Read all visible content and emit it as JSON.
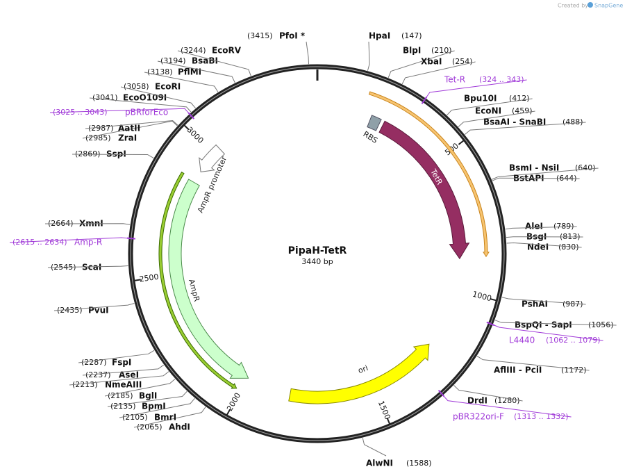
{
  "credit": {
    "prefix": "Created by",
    "brand": "SnapGene"
  },
  "map": {
    "name": "PipaH-TetR",
    "length": "3440 bp",
    "ticks": [
      500,
      1000,
      1500,
      2000,
      2500,
      3000
    ]
  },
  "sites": [
    {
      "name": "HpaI",
      "position": "(147)"
    },
    {
      "name": "BlpI",
      "position": "(210)"
    },
    {
      "name": "XbaI",
      "position": "(254)"
    },
    {
      "name": "Bpu10I",
      "position": "(412)"
    },
    {
      "name": "EcoNI",
      "position": "(459)"
    },
    {
      "name": "BsaAI - SnaBI",
      "position": "(488)"
    },
    {
      "name": "BsmI - NsiI",
      "position": "(640)"
    },
    {
      "name": "BstAPI",
      "position": "(644)"
    },
    {
      "name": "AleI",
      "position": "(789)"
    },
    {
      "name": "BsgI",
      "position": "(813)"
    },
    {
      "name": "NdeI",
      "position": "(830)"
    },
    {
      "name": "PshAI",
      "position": "(987)"
    },
    {
      "name": "BspQI - SapI",
      "position": "(1056)"
    },
    {
      "name": "AflIII - PciI",
      "position": "(1172)"
    },
    {
      "name": "DrdI",
      "position": "(1280)"
    },
    {
      "name": "AlwNI",
      "position": "(1588)"
    },
    {
      "name": "AhdI",
      "position": "(2065)"
    },
    {
      "name": "BmrI",
      "position": "(2105)"
    },
    {
      "name": "BpmI",
      "position": "(2135)"
    },
    {
      "name": "BglI",
      "position": "(2185)"
    },
    {
      "name": "NmeAIII",
      "position": "(2213)"
    },
    {
      "name": "AseI",
      "position": "(2237)"
    },
    {
      "name": "FspI",
      "position": "(2287)"
    },
    {
      "name": "PvuI",
      "position": "(2435)"
    },
    {
      "name": "ScaI",
      "position": "(2545)"
    },
    {
      "name": "XmnI",
      "position": "(2664)"
    },
    {
      "name": "SspI",
      "position": "(2869)"
    },
    {
      "name": "ZraI",
      "position": "(2985)"
    },
    {
      "name": "AatII",
      "position": "(2987)"
    },
    {
      "name": "EcoO109I",
      "position": "(3041)"
    },
    {
      "name": "EcoRI",
      "position": "(3058)"
    },
    {
      "name": "PflMI",
      "position": "(3138)"
    },
    {
      "name": "BsaBI",
      "position": "(3194)"
    },
    {
      "name": "EcoRV",
      "position": "(3244)"
    },
    {
      "name": "PfoI *",
      "position": "(3415)"
    }
  ],
  "primers": [
    {
      "name": "Tet-R",
      "range": "(324 .. 343)"
    },
    {
      "name": "L4440",
      "range": "(1062 .. 1079)"
    },
    {
      "name": "pBR322ori-F",
      "range": "(1313 .. 1332)"
    },
    {
      "name": "Amp-R",
      "range": "(2615 .. 2634)"
    },
    {
      "name": "pBRforEco",
      "range": "(3025 .. 3043)"
    }
  ],
  "features": [
    {
      "label": "TetR"
    },
    {
      "label": "RBS"
    },
    {
      "label": "AmpR promoter"
    },
    {
      "label": "AmpR"
    },
    {
      "label": "ori"
    }
  ]
}
